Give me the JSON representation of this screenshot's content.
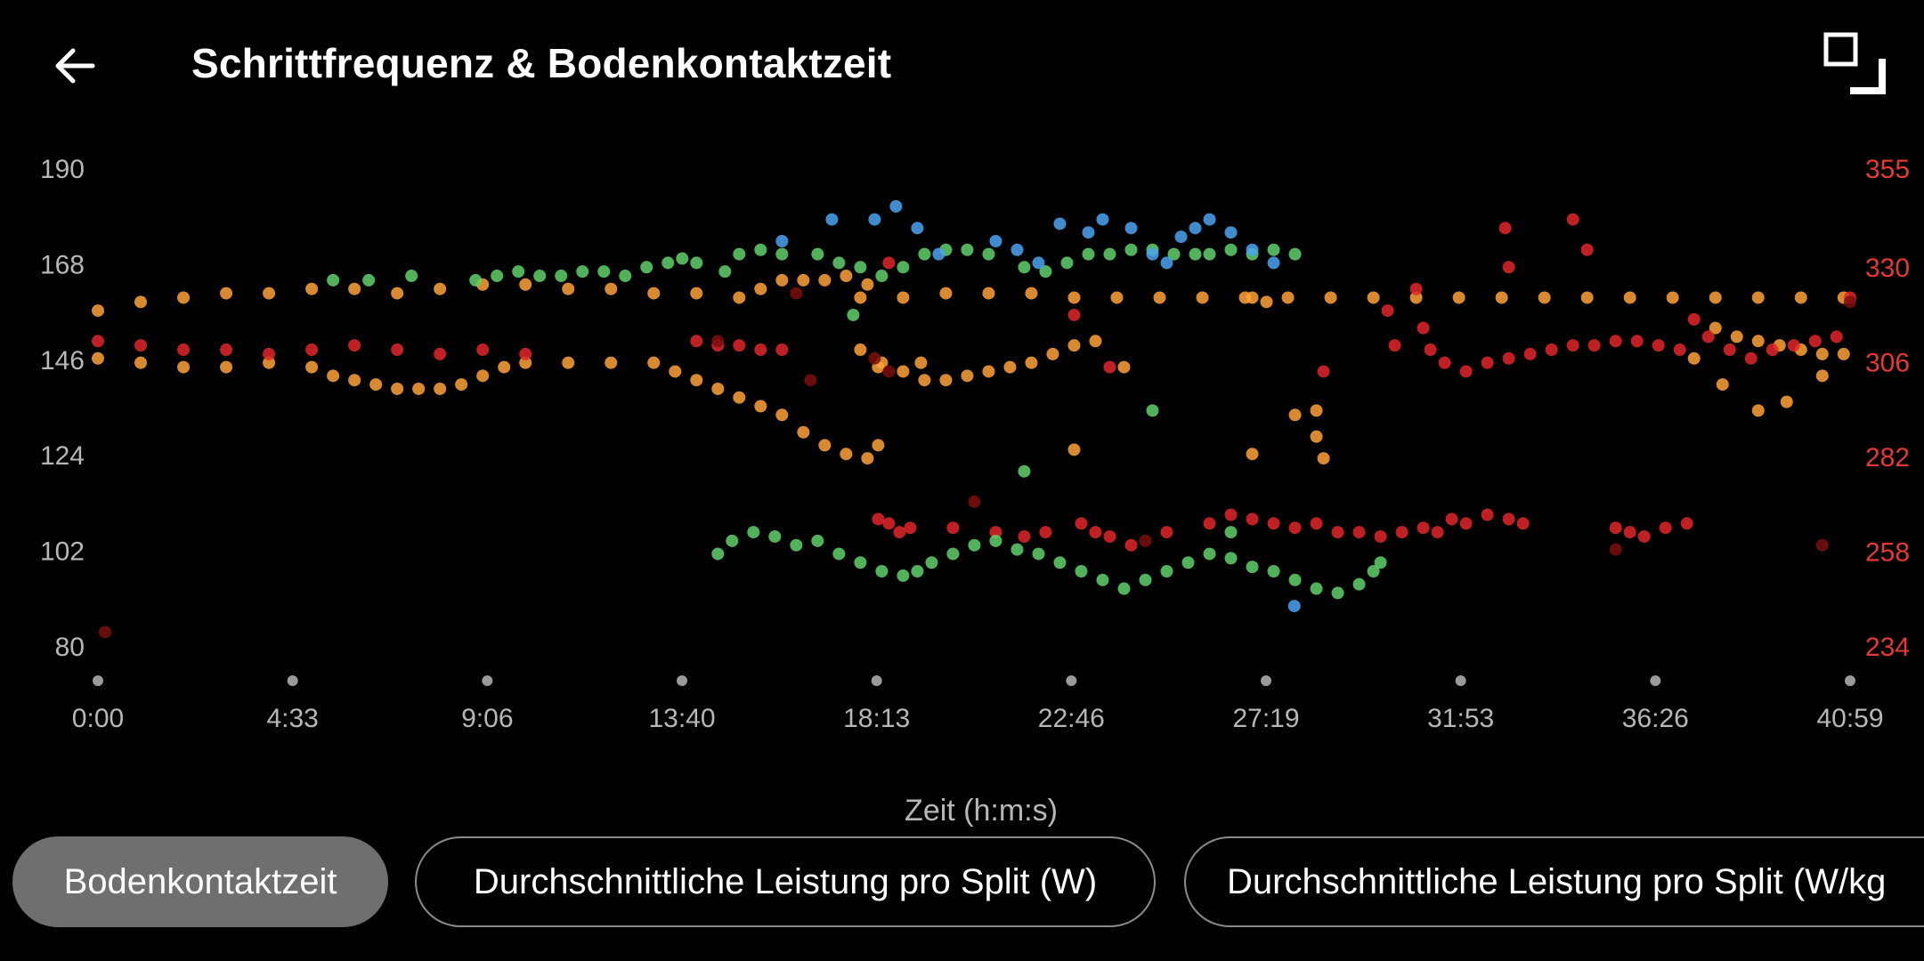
{
  "header": {
    "title": "Schrittfrequenz & Bodenkontaktzeit",
    "back_icon": "arrow-left-icon",
    "fullscreen_icon": "fullscreen-icon"
  },
  "chart_data": {
    "type": "scatter",
    "title": "Schrittfrequenz & Bodenkontaktzeit",
    "xlabel": "Zeit (h:m:s)",
    "x_ticks": [
      "0:00",
      "4:33",
      "9:06",
      "13:40",
      "18:13",
      "22:46",
      "27:19",
      "31:53",
      "36:26",
      "40:59"
    ],
    "x_range_seconds": [
      0,
      2459
    ],
    "y_left": {
      "ticks": [
        80,
        102,
        124,
        146,
        168,
        190
      ],
      "range": [
        80,
        190
      ]
    },
    "y_right": {
      "ticks": [
        234,
        258,
        282,
        306,
        330,
        355
      ],
      "range": [
        234,
        355
      ],
      "color": "#e53935"
    },
    "grid": false,
    "colors": {
      "orange": "#ffa238",
      "green": "#5fd16b",
      "blue": "#4aa3f2",
      "red": "#e0262a",
      "dark_red": "#7a0e0e"
    },
    "series": [
      {
        "color": "orange",
        "points": [
          [
            0,
            157
          ],
          [
            60,
            159
          ],
          [
            120,
            160
          ],
          [
            180,
            161
          ],
          [
            240,
            161
          ],
          [
            300,
            162
          ],
          [
            360,
            162
          ],
          [
            420,
            161
          ],
          [
            480,
            162
          ],
          [
            540,
            163
          ],
          [
            600,
            163
          ],
          [
            660,
            162
          ],
          [
            720,
            162
          ],
          [
            780,
            161
          ],
          [
            840,
            161
          ],
          [
            900,
            160
          ],
          [
            930,
            162
          ],
          [
            960,
            164
          ],
          [
            990,
            164
          ],
          [
            1020,
            164
          ],
          [
            1050,
            165
          ],
          [
            1080,
            163
          ],
          [
            0,
            146
          ],
          [
            60,
            145
          ],
          [
            120,
            144
          ],
          [
            180,
            144
          ],
          [
            240,
            145
          ],
          [
            300,
            144
          ],
          [
            330,
            142
          ],
          [
            360,
            141
          ],
          [
            390,
            140
          ],
          [
            420,
            139
          ],
          [
            450,
            139
          ],
          [
            480,
            139
          ],
          [
            510,
            140
          ],
          [
            540,
            142
          ],
          [
            570,
            144
          ],
          [
            600,
            145
          ],
          [
            660,
            145
          ],
          [
            720,
            145
          ],
          [
            780,
            145
          ],
          [
            810,
            143
          ],
          [
            840,
            141
          ],
          [
            870,
            139
          ],
          [
            900,
            137
          ],
          [
            930,
            135
          ],
          [
            960,
            133
          ],
          [
            990,
            129
          ],
          [
            1020,
            126
          ],
          [
            1050,
            124
          ],
          [
            1080,
            123
          ],
          [
            1095,
            126
          ],
          [
            1095,
            144
          ],
          [
            1155,
            145
          ],
          [
            1370,
            125
          ],
          [
            1440,
            144
          ],
          [
            1620,
            160
          ],
          [
            1640,
            159
          ],
          [
            1620,
            124
          ],
          [
            1680,
            133
          ],
          [
            1710,
            128
          ],
          [
            1720,
            123
          ],
          [
            1710,
            134
          ],
          [
            2240,
            146
          ],
          [
            2280,
            140
          ],
          [
            2330,
            134
          ],
          [
            2370,
            136
          ],
          [
            2420,
            142
          ],
          [
            1070,
            160
          ],
          [
            1130,
            160
          ],
          [
            1190,
            161
          ],
          [
            1250,
            161
          ],
          [
            1310,
            161
          ],
          [
            1370,
            160
          ],
          [
            1430,
            160
          ],
          [
            1490,
            160
          ],
          [
            1550,
            160
          ],
          [
            1610,
            160
          ],
          [
            1670,
            160
          ],
          [
            1730,
            160
          ],
          [
            1790,
            160
          ],
          [
            1850,
            160
          ],
          [
            1910,
            160
          ],
          [
            1970,
            160
          ],
          [
            2030,
            160
          ],
          [
            2090,
            160
          ],
          [
            2150,
            160
          ],
          [
            2210,
            160
          ],
          [
            2270,
            160
          ],
          [
            2330,
            160
          ],
          [
            2390,
            160
          ],
          [
            2450,
            160
          ],
          [
            1070,
            148
          ],
          [
            1100,
            145
          ],
          [
            1130,
            143
          ],
          [
            1160,
            141
          ],
          [
            1190,
            141
          ],
          [
            1220,
            142
          ],
          [
            1250,
            143
          ],
          [
            1280,
            144
          ],
          [
            1310,
            145
          ],
          [
            1340,
            147
          ],
          [
            1370,
            149
          ],
          [
            1400,
            150
          ],
          [
            2270,
            153
          ],
          [
            2300,
            151
          ],
          [
            2330,
            150
          ],
          [
            2360,
            149
          ],
          [
            2390,
            148
          ],
          [
            2420,
            147
          ],
          [
            2450,
            147
          ]
        ]
      },
      {
        "color": "red",
        "points": [
          [
            0,
            150
          ],
          [
            60,
            149
          ],
          [
            120,
            148
          ],
          [
            180,
            148
          ],
          [
            240,
            147
          ],
          [
            300,
            148
          ],
          [
            360,
            149
          ],
          [
            420,
            148
          ],
          [
            480,
            147
          ],
          [
            540,
            148
          ],
          [
            600,
            147
          ],
          [
            840,
            150
          ],
          [
            870,
            149
          ],
          [
            900,
            149
          ],
          [
            930,
            148
          ],
          [
            960,
            148
          ],
          [
            1095,
            109
          ],
          [
            1110,
            108
          ],
          [
            1125,
            106
          ],
          [
            1140,
            107
          ],
          [
            1200,
            107
          ],
          [
            1260,
            106
          ],
          [
            1300,
            105
          ],
          [
            1330,
            106
          ],
          [
            1380,
            108
          ],
          [
            1400,
            106
          ],
          [
            1420,
            105
          ],
          [
            1450,
            103
          ],
          [
            1500,
            106
          ],
          [
            1560,
            108
          ],
          [
            1590,
            110
          ],
          [
            1620,
            109
          ],
          [
            1650,
            108
          ],
          [
            1680,
            107
          ],
          [
            1710,
            108
          ],
          [
            1740,
            106
          ],
          [
            1770,
            106
          ],
          [
            1800,
            105
          ],
          [
            1830,
            106
          ],
          [
            1860,
            107
          ],
          [
            1880,
            106
          ],
          [
            1900,
            109
          ],
          [
            1920,
            108
          ],
          [
            1950,
            110
          ],
          [
            1980,
            109
          ],
          [
            2000,
            108
          ],
          [
            1110,
            168
          ],
          [
            1370,
            156
          ],
          [
            1420,
            144
          ],
          [
            1720,
            143
          ],
          [
            1810,
            157
          ],
          [
            1820,
            149
          ],
          [
            1850,
            162
          ],
          [
            1860,
            153
          ],
          [
            1870,
            148
          ],
          [
            1890,
            145
          ],
          [
            1920,
            143
          ],
          [
            1950,
            145
          ],
          [
            1980,
            146
          ],
          [
            2010,
            147
          ],
          [
            2040,
            148
          ],
          [
            2070,
            149
          ],
          [
            2100,
            149
          ],
          [
            2130,
            150
          ],
          [
            2160,
            150
          ],
          [
            2190,
            149
          ],
          [
            2220,
            148
          ],
          [
            1975,
            176
          ],
          [
            1980,
            167
          ],
          [
            2070,
            178
          ],
          [
            2090,
            171
          ],
          [
            2130,
            107
          ],
          [
            2150,
            106
          ],
          [
            2170,
            105
          ],
          [
            2200,
            107
          ],
          [
            2230,
            108
          ],
          [
            2240,
            155
          ],
          [
            2260,
            151
          ],
          [
            2290,
            148
          ],
          [
            2320,
            146
          ],
          [
            2350,
            148
          ],
          [
            2380,
            149
          ],
          [
            2410,
            150
          ],
          [
            2440,
            151
          ],
          [
            2459,
            160
          ]
        ]
      },
      {
        "color": "green",
        "points": [
          [
            330,
            164
          ],
          [
            380,
            164
          ],
          [
            440,
            165
          ],
          [
            530,
            164
          ],
          [
            560,
            165
          ],
          [
            590,
            166
          ],
          [
            620,
            165
          ],
          [
            650,
            165
          ],
          [
            680,
            166
          ],
          [
            710,
            166
          ],
          [
            740,
            165
          ],
          [
            770,
            167
          ],
          [
            800,
            168
          ],
          [
            820,
            169
          ],
          [
            840,
            168
          ],
          [
            870,
            101
          ],
          [
            890,
            104
          ],
          [
            920,
            106
          ],
          [
            950,
            105
          ],
          [
            980,
            103
          ],
          [
            1010,
            104
          ],
          [
            1040,
            101
          ],
          [
            1070,
            99
          ],
          [
            1100,
            97
          ],
          [
            1130,
            96
          ],
          [
            1150,
            97
          ],
          [
            1170,
            99
          ],
          [
            1200,
            101
          ],
          [
            1230,
            103
          ],
          [
            1260,
            104
          ],
          [
            1290,
            102
          ],
          [
            1320,
            101
          ],
          [
            1350,
            99
          ],
          [
            1380,
            97
          ],
          [
            1410,
            95
          ],
          [
            1440,
            93
          ],
          [
            1470,
            95
          ],
          [
            1500,
            97
          ],
          [
            1530,
            99
          ],
          [
            1560,
            101
          ],
          [
            1590,
            100
          ],
          [
            1620,
            98
          ],
          [
            1650,
            97
          ],
          [
            1680,
            95
          ],
          [
            1710,
            93
          ],
          [
            1740,
            92
          ],
          [
            1770,
            94
          ],
          [
            1790,
            97
          ],
          [
            1800,
            99
          ],
          [
            880,
            166
          ],
          [
            900,
            170
          ],
          [
            930,
            171
          ],
          [
            960,
            170
          ],
          [
            1010,
            170
          ],
          [
            1040,
            168
          ],
          [
            1070,
            167
          ],
          [
            1100,
            165
          ],
          [
            1130,
            167
          ],
          [
            1160,
            170
          ],
          [
            1190,
            171
          ],
          [
            1220,
            171
          ],
          [
            1250,
            170
          ],
          [
            1300,
            167
          ],
          [
            1330,
            166
          ],
          [
            1360,
            168
          ],
          [
            1390,
            170
          ],
          [
            1420,
            170
          ],
          [
            1450,
            171
          ],
          [
            1480,
            171
          ],
          [
            1510,
            170
          ],
          [
            1540,
            170
          ],
          [
            1560,
            170
          ],
          [
            1590,
            171
          ],
          [
            1620,
            170
          ],
          [
            1650,
            171
          ],
          [
            1680,
            170
          ],
          [
            1060,
            156
          ],
          [
            1480,
            134
          ],
          [
            1300,
            120
          ],
          [
            1590,
            106
          ]
        ]
      },
      {
        "color": "blue",
        "points": [
          [
            960,
            173
          ],
          [
            1030,
            178
          ],
          [
            1090,
            178
          ],
          [
            1120,
            181
          ],
          [
            1150,
            176
          ],
          [
            1180,
            170
          ],
          [
            1260,
            173
          ],
          [
            1290,
            171
          ],
          [
            1320,
            168
          ],
          [
            1350,
            177
          ],
          [
            1390,
            175
          ],
          [
            1410,
            178
          ],
          [
            1450,
            176
          ],
          [
            1480,
            170
          ],
          [
            1500,
            168
          ],
          [
            1520,
            174
          ],
          [
            1540,
            176
          ],
          [
            1560,
            178
          ],
          [
            1590,
            175
          ],
          [
            1620,
            171
          ],
          [
            1650,
            168
          ],
          [
            1679,
            89
          ]
        ]
      },
      {
        "color": "dark_red",
        "points": [
          [
            10,
            83
          ],
          [
            1000,
            141
          ],
          [
            980,
            161
          ],
          [
            870,
            150
          ],
          [
            1090,
            146
          ],
          [
            1110,
            143
          ],
          [
            1230,
            113
          ],
          [
            1470,
            104
          ],
          [
            2130,
            102
          ],
          [
            2420,
            103
          ],
          [
            2459,
            159
          ]
        ]
      }
    ]
  },
  "tabs": [
    {
      "label": "Bodenkontaktzeit",
      "active": true
    },
    {
      "label": "Durchschnittliche Leistung pro Split (W)",
      "active": false
    },
    {
      "label": "Durchschnittliche Leistung pro Split (W/kg",
      "active": false
    }
  ]
}
